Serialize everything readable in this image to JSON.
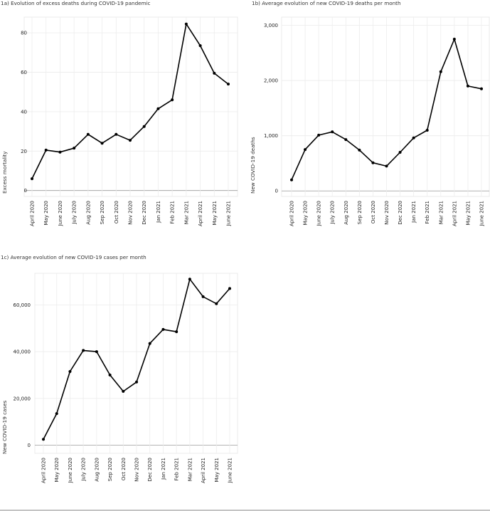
{
  "chart_data": [
    {
      "id": "a",
      "type": "line",
      "title": "1a) Evolution of excess deaths during COVID-19 pandemic",
      "ylabel": "Excess mortality",
      "xlabel": "",
      "categories": [
        "April 2020",
        "May 2020",
        "June 2020",
        "July 2020",
        "Aug 2020",
        "Sep 2020",
        "Oct 2020",
        "Nov 2020",
        "Dec 2020",
        "Jan 2021",
        "Feb 2021",
        "Mar 2021",
        "April 2021",
        "May 2021",
        "June 2021"
      ],
      "series": [
        {
          "values": [
            6,
            20.5,
            19.5,
            21.5,
            28.5,
            24,
            28.5,
            25.5,
            32.5,
            41.5,
            46,
            84.5,
            73.5,
            59.5,
            54
          ]
        }
      ],
      "yticks": [
        0,
        20,
        40,
        60,
        80
      ],
      "ytick_labels": [
        "0",
        "20",
        "40",
        "60",
        "80"
      ],
      "ylim": [
        -3,
        88
      ],
      "grid": true
    },
    {
      "id": "b",
      "type": "line",
      "title": "1b) Average evolution of new COVID-19 deaths per month",
      "ylabel": "New COVID-19 deaths",
      "xlabel": "",
      "categories": [
        "April 2020",
        "May 2020",
        "June 2020",
        "July 2020",
        "Aug 2020",
        "Sep 2020",
        "Oct 2020",
        "Nov 2020",
        "Dec 2020",
        "Jan 2021",
        "Feb 2021",
        "Mar 2021",
        "April 2021",
        "May 2021",
        "June 2021"
      ],
      "series": [
        {
          "values": [
            200,
            750,
            1010,
            1070,
            930,
            740,
            510,
            450,
            700,
            960,
            1100,
            2160,
            2750,
            1900,
            1850
          ]
        }
      ],
      "yticks": [
        0,
        1000,
        2000,
        3000
      ],
      "ytick_labels": [
        "0",
        "1,000",
        "2,000",
        "3,000"
      ],
      "ylim": [
        -100,
        3150
      ],
      "grid": true
    },
    {
      "id": "c",
      "type": "line",
      "title": "1c) Average evolution of new COVID-19 cases per month",
      "ylabel": "New COVID-19 cases",
      "xlabel": "",
      "categories": [
        "April 2020",
        "May 2020",
        "June 2020",
        "July 2020",
        "Aug 2020",
        "Sep 2020",
        "Oct 2020",
        "Nov 2020",
        "Dec 2020",
        "Jan 2021",
        "Feb 2021",
        "Mar 2021",
        "April 2021",
        "May 2021",
        "June 2021"
      ],
      "series": [
        {
          "values": [
            2500,
            13500,
            31500,
            40500,
            40000,
            30000,
            23000,
            27000,
            43500,
            49500,
            48500,
            71000,
            63500,
            60500,
            67000
          ]
        }
      ],
      "yticks": [
        0,
        20000,
        40000,
        60000
      ],
      "ytick_labels": [
        "0",
        "20,000",
        "40,000",
        "60,000"
      ],
      "ylim": [
        -3500,
        73500
      ],
      "grid": true
    }
  ]
}
